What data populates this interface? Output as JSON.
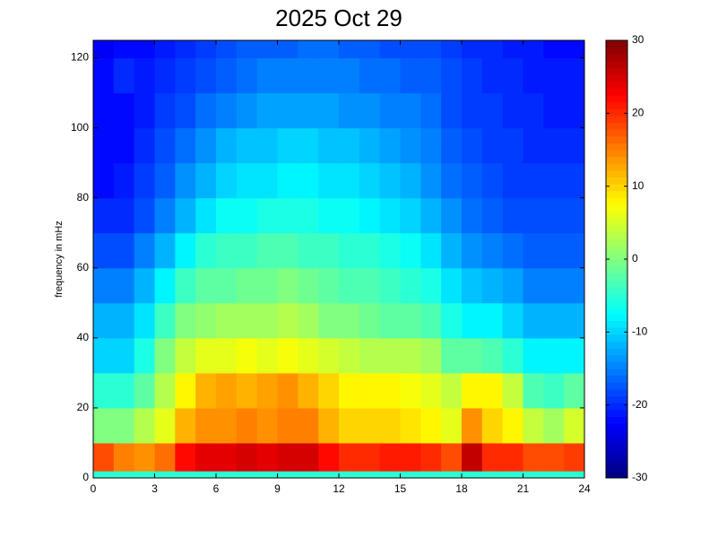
{
  "chart_data": {
    "type": "heatmap",
    "title": "2025 Oct 29",
    "y_label": "frequency in mHz",
    "colormap": "jet",
    "clim": [
      -30,
      30
    ],
    "cticks": [
      -30,
      -20,
      -10,
      0,
      10,
      20,
      30
    ],
    "x": [
      0,
      1,
      2,
      3,
      4,
      5,
      6,
      7,
      8,
      9,
      10,
      11,
      12,
      13,
      14,
      15,
      16,
      17,
      18,
      19,
      20,
      21,
      22,
      23,
      24
    ],
    "y": [
      0,
      2,
      10,
      20,
      30,
      40,
      50,
      60,
      70,
      80,
      90,
      100,
      110,
      120,
      125
    ],
    "xlim": [
      0,
      24
    ],
    "xticks": [
      0,
      3,
      6,
      9,
      12,
      15,
      18,
      21,
      24
    ],
    "ylim": [
      0,
      125
    ],
    "yticks": [
      0,
      20,
      40,
      60,
      80,
      100,
      120
    ],
    "z": [
      [
        -5,
        -5,
        -5,
        -5,
        -5,
        -5,
        -5,
        -5,
        -5,
        -5,
        -5,
        -5,
        -5,
        -5,
        -5,
        -5,
        -5,
        -5,
        -5,
        -5,
        -5,
        -5,
        -5,
        -5
      ],
      [
        18,
        15,
        14,
        16,
        22,
        24,
        24,
        25,
        24,
        25,
        25,
        22,
        20,
        20,
        21,
        21,
        20,
        18,
        26,
        20,
        20,
        18,
        18,
        19
      ],
      [
        0,
        0,
        3,
        6,
        12,
        14,
        14,
        15,
        14,
        15,
        15,
        12,
        10,
        10,
        10,
        9,
        8,
        6,
        14,
        10,
        8,
        4,
        2,
        5
      ],
      [
        -5,
        -5,
        -2,
        3,
        8,
        12,
        13,
        12,
        13,
        14,
        12,
        10,
        8,
        8,
        8,
        7,
        6,
        4,
        8,
        8,
        4,
        -3,
        -4,
        -2
      ],
      [
        -10,
        -10,
        -6,
        0,
        4,
        6,
        6,
        7,
        6,
        7,
        6,
        5,
        4,
        3,
        3,
        3,
        2,
        -2,
        -2,
        -3,
        -5,
        -8,
        -8,
        -8
      ],
      [
        -12,
        -12,
        -9,
        -4,
        0,
        1,
        2,
        2,
        2,
        3,
        2,
        0,
        0,
        -1,
        -2,
        -2,
        -3,
        -6,
        -8,
        -8,
        -10,
        -12,
        -12,
        -12
      ],
      [
        -15,
        -15,
        -12,
        -8,
        -4,
        -2,
        -2,
        -1,
        -1,
        0,
        -1,
        -2,
        -3,
        -3,
        -4,
        -5,
        -6,
        -9,
        -11,
        -12,
        -13,
        -15,
        -15,
        -15
      ],
      [
        -18,
        -18,
        -15,
        -12,
        -8,
        -5,
        -4,
        -4,
        -3,
        -3,
        -4,
        -4,
        -5,
        -5,
        -6,
        -7,
        -9,
        -12,
        -14,
        -15,
        -16,
        -17,
        -17,
        -17
      ],
      [
        -20,
        -20,
        -18,
        -15,
        -12,
        -9,
        -7,
        -7,
        -6,
        -6,
        -6,
        -7,
        -7,
        -8,
        -9,
        -10,
        -12,
        -14,
        -16,
        -17,
        -18,
        -18,
        -18,
        -18
      ],
      [
        -22,
        -21,
        -19,
        -17,
        -14,
        -12,
        -10,
        -9,
        -9,
        -8,
        -8,
        -9,
        -9,
        -10,
        -11,
        -12,
        -14,
        -16,
        -17,
        -18,
        -19,
        -19,
        -19,
        -19
      ],
      [
        -22,
        -22,
        -20,
        -18,
        -16,
        -14,
        -12,
        -11,
        -11,
        -10,
        -10,
        -11,
        -11,
        -12,
        -13,
        -14,
        -15,
        -17,
        -18,
        -19,
        -19,
        -20,
        -20,
        -20
      ],
      [
        -22,
        -22,
        -21,
        -19,
        -18,
        -16,
        -15,
        -14,
        -13,
        -13,
        -13,
        -13,
        -14,
        -14,
        -15,
        -15,
        -16,
        -18,
        -19,
        -19,
        -20,
        -20,
        -21,
        -21
      ],
      [
        -22,
        -20,
        -21,
        -20,
        -19,
        -18,
        -17,
        -16,
        -15,
        -15,
        -15,
        -15,
        -15,
        -16,
        -16,
        -17,
        -17,
        -18,
        -19,
        -20,
        -20,
        -21,
        -21,
        -21
      ],
      [
        -23,
        -22,
        -22,
        -21,
        -20,
        -19,
        -18,
        -17,
        -17,
        -17,
        -16,
        -16,
        -17,
        -17,
        -18,
        -18,
        -18,
        -19,
        -20,
        -20,
        -21,
        -21,
        -22,
        -22
      ]
    ]
  }
}
